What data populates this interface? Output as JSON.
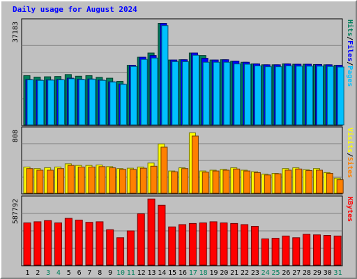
{
  "chart_data": {
    "type": "bar",
    "title": "Daily usage for August 2024",
    "colors": {
      "hits": "#00805c",
      "files": "#0000ff",
      "pages": "#00c0ff",
      "visits": "#ffff00",
      "sites": "#ff8000",
      "kbytes": "#ff0000",
      "weekday_label": "#000000",
      "weekend_label": "#00805c"
    },
    "side_labels": {
      "panel1": [
        "Hits",
        "/",
        "Files",
        "/",
        "Pages"
      ],
      "panel2": [
        "Visits",
        "/",
        "Sites"
      ],
      "panel3": [
        "KBytes"
      ]
    },
    "days": [
      "1",
      "2",
      "3",
      "4",
      "5",
      "6",
      "7",
      "8",
      "9",
      "10",
      "11",
      "12",
      "13",
      "14",
      "15",
      "16",
      "17",
      "18",
      "19",
      "20",
      "21",
      "22",
      "23",
      "24",
      "25",
      "26",
      "27",
      "28",
      "29",
      "30",
      "31"
    ],
    "weekend_days": [
      "3",
      "4",
      "10",
      "11",
      "17",
      "18",
      "24",
      "25",
      "31"
    ],
    "panels": [
      {
        "ymax_label": "37183",
        "ylim": [
          0,
          37183
        ],
        "series": [
          {
            "name": "Hits",
            "values": [
              17600,
              17100,
              17200,
              17300,
              18000,
              17400,
              17600,
              17000,
              16700,
              15600,
              21300,
              24200,
              25700,
              36300,
              23200,
              23300,
              25700,
              24800,
              23200,
              23300,
              22800,
              22400,
              21800,
              21500,
              21500,
              21800,
              21700,
              21700,
              21600,
              21500,
              21300
            ]
          },
          {
            "name": "Files",
            "values": [
              16200,
              16000,
              16100,
              16200,
              16700,
              16300,
              16400,
              16000,
              15400,
              14600,
              21300,
              24200,
              24800,
              36300,
              23200,
              23300,
              25700,
              23800,
              23200,
              23300,
              22800,
              22400,
              21800,
              21500,
              21500,
              21800,
              21700,
              21700,
              21600,
              21500,
              21300
            ]
          },
          {
            "name": "Pages",
            "values": [
              16100,
              15900,
              16000,
              16100,
              16500,
              16200,
              16300,
              15900,
              15300,
              14500,
              20900,
              23400,
              23900,
              35500,
              22600,
              22600,
              24900,
              22400,
              22400,
              22400,
              21800,
              21700,
              21100,
              20800,
              20800,
              21100,
              21000,
              21000,
              21000,
              20900,
              20700
            ]
          }
        ]
      },
      {
        "ymax_label": "808",
        "ylim": [
          0,
          808
        ],
        "series": [
          {
            "name": "Visits",
            "values": [
              330,
              310,
              320,
              330,
              370,
              350,
              350,
              355,
              335,
              310,
              315,
              330,
              380,
              620,
              280,
              320,
              760,
              280,
              290,
              300,
              320,
              290,
              270,
              240,
              250,
              310,
              320,
              295,
              310,
              260,
              190
            ]
          },
          {
            "name": "Sites",
            "values": [
              310,
              290,
              290,
              310,
              350,
              330,
              330,
              335,
              320,
              300,
              300,
              315,
              340,
              580,
              270,
              310,
              720,
              265,
              280,
              290,
              305,
              280,
              260,
              230,
              245,
              290,
              305,
              285,
              290,
              250,
              170
            ]
          }
        ]
      },
      {
        "ymax_label": "587792",
        "ylim": [
          0,
          587792
        ],
        "series": [
          {
            "name": "KBytes",
            "values": [
              370000,
              380000,
              390000,
              370000,
              410000,
              395000,
              375000,
              380000,
              310000,
              240000,
              300000,
              450000,
              580000,
              525000,
              335000,
              355000,
              365000,
              370000,
              380000,
              370000,
              365000,
              355000,
              340000,
              230000,
              235000,
              255000,
              240000,
              270000,
              265000,
              260000,
              255000
            ]
          }
        ]
      }
    ]
  }
}
